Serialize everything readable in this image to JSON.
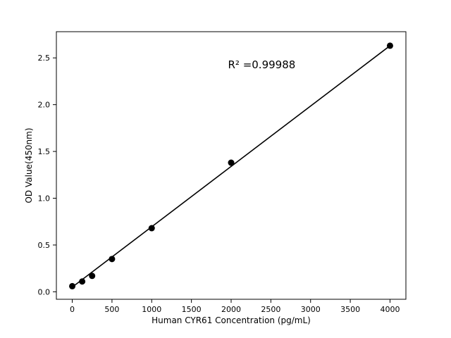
{
  "chart_data": {
    "type": "scatter",
    "title": "",
    "xlabel": "Human CYR61 Concentration (pg/mL)",
    "ylabel": "OD Value(450nm)",
    "annotation": "R² =0.99988",
    "annotation_pos": {
      "x": 1960,
      "y": 2.42
    },
    "x": [
      0,
      125,
      250,
      500,
      1000,
      2000,
      4000
    ],
    "y": [
      0.06,
      0.11,
      0.17,
      0.35,
      0.68,
      1.38,
      2.63
    ],
    "fit_line": {
      "x": [
        0,
        4000
      ],
      "y": [
        0.05,
        2.63
      ]
    },
    "xticks": [
      0,
      500,
      1000,
      1500,
      2000,
      2500,
      3000,
      3500,
      4000
    ],
    "yticks": [
      0.0,
      0.5,
      1.0,
      1.5,
      2.0,
      2.5
    ],
    "xlim": [
      -200,
      4200
    ],
    "ylim": [
      -0.08,
      2.78
    ],
    "grid": false,
    "legend": null,
    "marker_color": "#000000",
    "line_color": "#000000"
  }
}
